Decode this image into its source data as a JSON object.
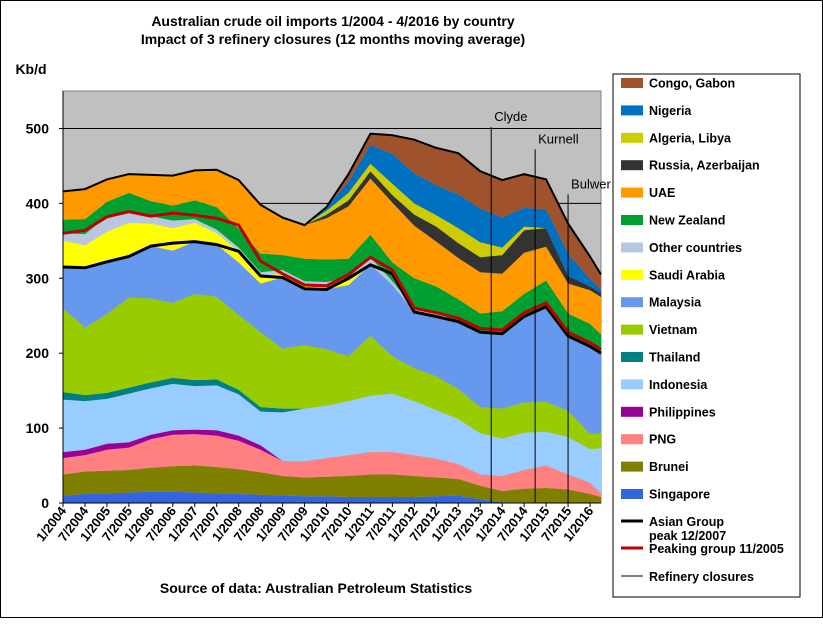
{
  "chart_data": {
    "type": "area",
    "stacked": true,
    "title": "Australian crude oil imports 1/2004 - 4/2016 by country",
    "subtitle": "Impact of 3 refinery closures (12 months moving average)",
    "ylabel": "Kb/d",
    "source": "Source of data: Australian Petroleum Statistics",
    "ylim": [
      0,
      550
    ],
    "yticks": [
      0,
      100,
      200,
      300,
      400,
      500
    ],
    "xlim": [
      "2004-01",
      "2016-04"
    ],
    "xtick_labels": [
      "1/2004",
      "7/2004",
      "1/2005",
      "7/2005",
      "1/2006",
      "7/2006",
      "1/2007",
      "7/2007",
      "1/2008",
      "7/2008",
      "1/2009",
      "7/2009",
      "1/2010",
      "7/2010",
      "1/2011",
      "7/2011",
      "1/2012",
      "7/2012",
      "1/2013",
      "7/2013",
      "1/2014",
      "7/2014",
      "1/2015",
      "7/2015",
      "1/2016"
    ],
    "x": [
      "2004-01",
      "2004-07",
      "2005-01",
      "2005-07",
      "2006-01",
      "2006-07",
      "2007-01",
      "2007-07",
      "2008-01",
      "2008-07",
      "2009-01",
      "2009-07",
      "2010-01",
      "2010-07",
      "2011-01",
      "2011-07",
      "2012-01",
      "2012-07",
      "2013-01",
      "2013-07",
      "2014-01",
      "2014-07",
      "2015-01",
      "2015-07",
      "2016-01",
      "2016-04"
    ],
    "gridlines": [
      400,
      500
    ],
    "refinery_closures": [
      {
        "label": "Clyde",
        "x": "2013-10",
        "y": 510
      },
      {
        "label": "Kurnell",
        "x": "2014-10",
        "y": 480
      },
      {
        "label": "Bulwer",
        "x": "2015-07",
        "y": 420
      }
    ],
    "series": [
      {
        "name": "Singapore",
        "color": "#3366dd",
        "values": [
          10,
          12,
          13,
          14,
          15,
          15,
          14,
          13,
          12,
          11,
          10,
          9,
          9,
          8,
          8,
          8,
          8,
          9,
          10,
          5,
          1,
          1,
          0,
          0,
          0,
          0
        ]
      },
      {
        "name": "Brunei",
        "color": "#808000",
        "values": [
          28,
          30,
          30,
          30,
          32,
          34,
          36,
          35,
          33,
          30,
          26,
          25,
          26,
          28,
          30,
          30,
          28,
          25,
          22,
          18,
          15,
          18,
          20,
          18,
          12,
          8
        ]
      },
      {
        "name": "PNG",
        "color": "#ff8080",
        "values": [
          22,
          22,
          28,
          30,
          38,
          42,
          42,
          42,
          38,
          30,
          20,
          22,
          25,
          28,
          30,
          30,
          28,
          25,
          20,
          15,
          20,
          25,
          30,
          20,
          15,
          5
        ]
      },
      {
        "name": "Philippines",
        "color": "#990099",
        "values": [
          8,
          7,
          8,
          7,
          6,
          6,
          6,
          7,
          7,
          6,
          0,
          0,
          0,
          0,
          0,
          0,
          0,
          0,
          0,
          0,
          0,
          0,
          0,
          0,
          0,
          0
        ]
      },
      {
        "name": "Indonesia",
        "color": "#99ccff",
        "values": [
          70,
          65,
          60,
          65,
          62,
          62,
          58,
          60,
          55,
          45,
          65,
          70,
          70,
          72,
          75,
          78,
          72,
          65,
          60,
          55,
          50,
          50,
          45,
          50,
          45,
          60
        ]
      },
      {
        "name": "Thailand",
        "color": "#008080",
        "values": [
          10,
          8,
          8,
          8,
          8,
          8,
          8,
          8,
          6,
          6,
          5,
          0,
          0,
          0,
          0,
          0,
          0,
          0,
          0,
          0,
          0,
          0,
          0,
          0,
          0,
          0
        ]
      },
      {
        "name": "Vietnam",
        "color": "#99cc00",
        "values": [
          112,
          90,
          105,
          120,
          112,
          100,
          115,
          110,
          100,
          100,
          80,
          85,
          75,
          60,
          80,
          50,
          44,
          45,
          40,
          35,
          40,
          40,
          40,
          35,
          20,
          20
        ]
      },
      {
        "name": "Malaysia",
        "color": "#6699ee",
        "values": [
          55,
          80,
          70,
          55,
          70,
          70,
          70,
          70,
          70,
          65,
          95,
          75,
          80,
          95,
          95,
          95,
          75,
          80,
          90,
          100,
          100,
          115,
          127,
          100,
          117,
          107
        ]
      },
      {
        "name": "Saudi Arabia",
        "color": "#ffff00",
        "values": [
          35,
          30,
          40,
          45,
          30,
          30,
          25,
          15,
          15,
          10,
          5,
          5,
          5,
          5,
          0,
          0,
          0,
          0,
          0,
          0,
          0,
          0,
          0,
          0,
          0,
          0
        ]
      },
      {
        "name": "Other countries",
        "color": "#b7c7e0",
        "values": [
          10,
          15,
          20,
          15,
          10,
          10,
          5,
          5,
          5,
          5,
          5,
          5,
          5,
          5,
          10,
          5,
          5,
          5,
          0,
          0,
          0,
          0,
          0,
          0,
          0,
          0
        ]
      },
      {
        "name": "New Zealand",
        "color": "#00a030",
        "values": [
          18,
          20,
          20,
          25,
          20,
          20,
          25,
          30,
          25,
          25,
          20,
          30,
          30,
          25,
          30,
          25,
          40,
          35,
          30,
          25,
          30,
          30,
          35,
          30,
          30,
          25
        ]
      },
      {
        "name": "UAE",
        "color": "#ff9900",
        "values": [
          38,
          40,
          30,
          25,
          35,
          40,
          40,
          50,
          65,
          65,
          50,
          45,
          55,
          70,
          75,
          80,
          70,
          60,
          55,
          55,
          50,
          55,
          45,
          40,
          45,
          50
        ]
      },
      {
        "name": "Russia, Azerbaijan",
        "color": "#333333",
        "values": [
          0,
          0,
          0,
          0,
          0,
          0,
          0,
          0,
          0,
          0,
          0,
          0,
          5,
          8,
          10,
          10,
          15,
          20,
          20,
          20,
          25,
          30,
          25,
          10,
          5,
          5
        ]
      },
      {
        "name": "Algeria, Libya",
        "color": "#cccc00",
        "values": [
          0,
          0,
          0,
          0,
          0,
          0,
          0,
          0,
          0,
          0,
          0,
          0,
          5,
          10,
          10,
          15,
          15,
          15,
          20,
          20,
          10,
          5,
          0,
          0,
          0,
          0
        ]
      },
      {
        "name": "Nigeria",
        "color": "#0070c0",
        "values": [
          0,
          0,
          0,
          0,
          0,
          0,
          0,
          0,
          0,
          0,
          0,
          0,
          5,
          15,
          25,
          40,
          40,
          40,
          45,
          45,
          40,
          25,
          25,
          30,
          10,
          5
        ]
      },
      {
        "name": "Congo, Gabon",
        "color": "#a0522d",
        "values": [
          0,
          0,
          0,
          0,
          0,
          0,
          0,
          0,
          0,
          0,
          0,
          0,
          0,
          10,
          15,
          25,
          45,
          50,
          55,
          50,
          50,
          45,
          40,
          40,
          30,
          20
        ]
      }
    ],
    "lines": [
      {
        "name": "Asian Group peak 12/2007",
        "color": "#000000",
        "values": [
          315,
          314,
          322,
          329,
          343,
          347,
          349,
          345,
          336,
          303,
          301,
          286,
          285,
          300,
          318,
          306,
          255,
          249,
          242,
          228,
          226,
          249,
          262,
          223,
          209,
          200
        ]
      },
      {
        "name": "Peaking group 11/2005",
        "color": "#c00000",
        "values": [
          360,
          364,
          382,
          389,
          383,
          387,
          384,
          380,
          371,
          323,
          306,
          291,
          290,
          305,
          328,
          311,
          260,
          254,
          247,
          233,
          231,
          254,
          267,
          228,
          214,
          205
        ]
      },
      {
        "name": "Refinery closures",
        "color": "#000000"
      }
    ]
  }
}
